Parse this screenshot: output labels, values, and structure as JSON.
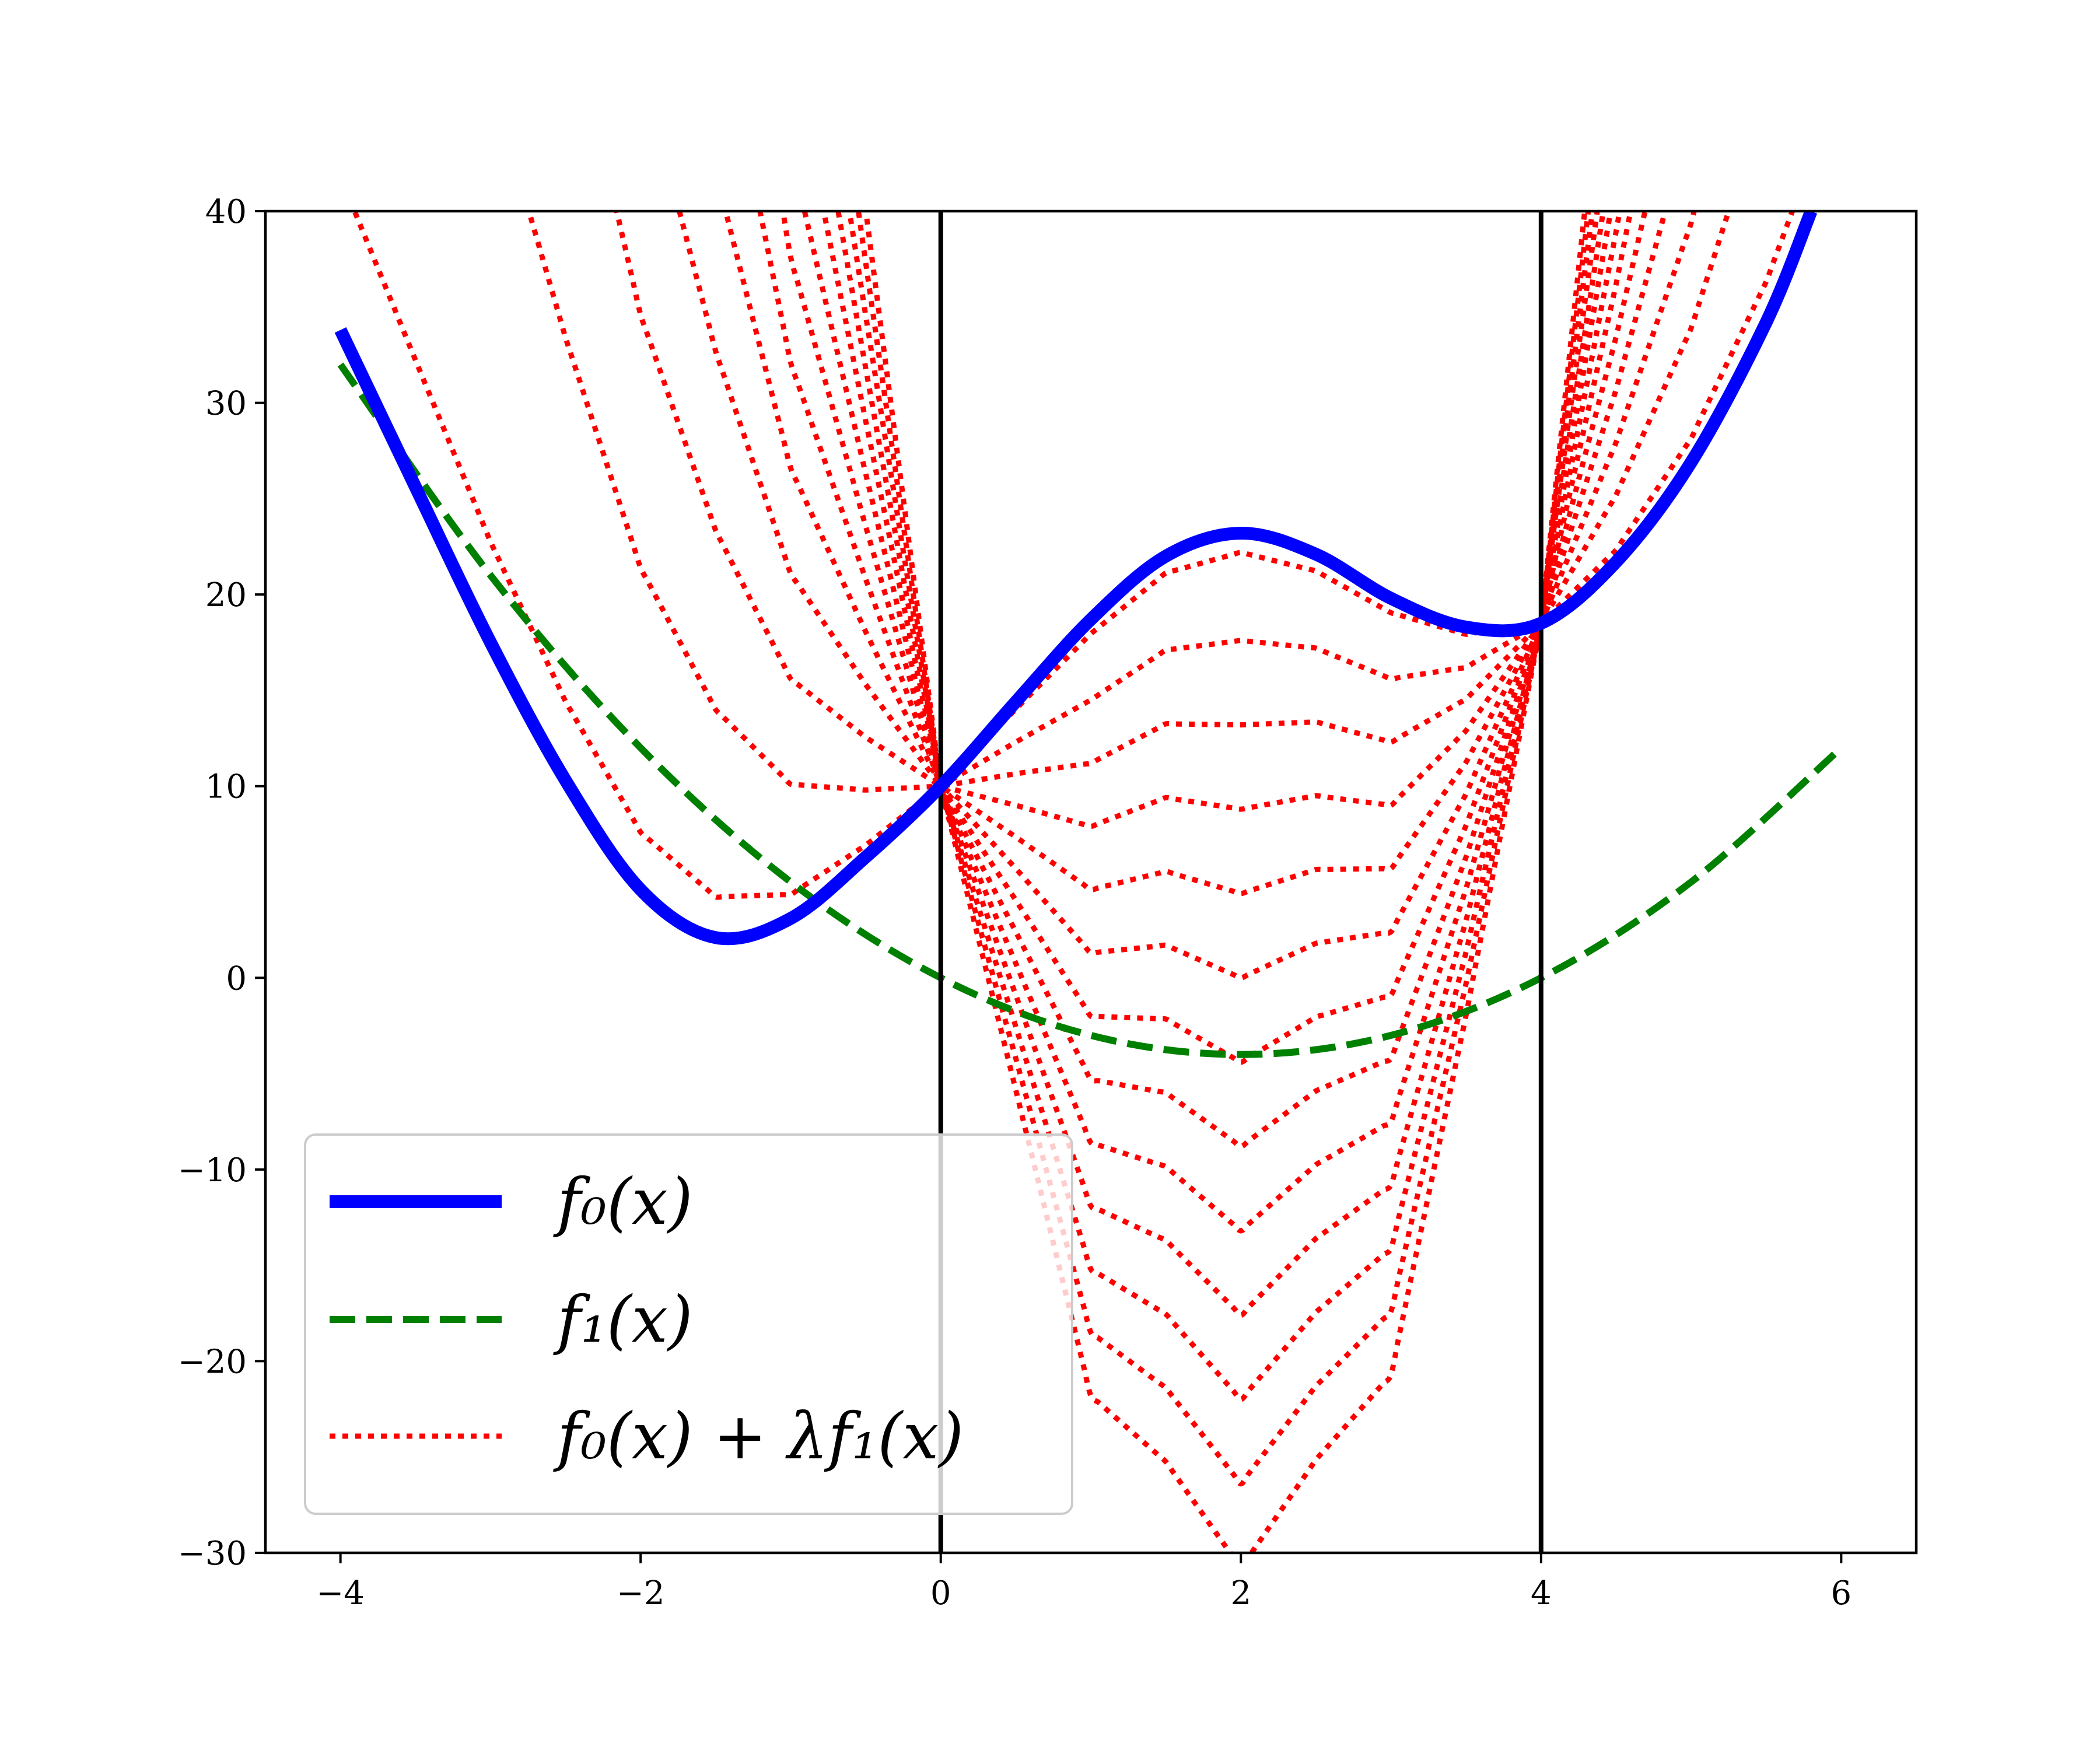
{
  "chart_data": {
    "type": "line",
    "title": "",
    "xlabel": "",
    "ylabel": "",
    "xlim": [
      -4.5,
      6.5
    ],
    "ylim": [
      -30,
      40
    ],
    "xticks": [
      -4,
      -2,
      0,
      2,
      4,
      6
    ],
    "yticks": [
      -30,
      -20,
      -10,
      0,
      10,
      20,
      30,
      40
    ],
    "x_tick_labels": [
      "−4",
      "−2",
      "0",
      "2",
      "4",
      "6"
    ],
    "y_tick_labels": [
      "−30",
      "−20",
      "−10",
      "0",
      "10",
      "20",
      "30",
      "40"
    ],
    "vertical_lines": [
      0,
      4
    ],
    "grid": false,
    "legend_position": "lower-left",
    "series": [
      {
        "name": "f0(x)",
        "legend_label": "f₀(x)",
        "style": "solid",
        "color": "#0000ff",
        "x": [
          -4.0,
          -3.5,
          -3.0,
          -2.5,
          -2.0,
          -1.5,
          -1.0,
          -0.5,
          0.0,
          0.5,
          1.0,
          1.5,
          2.0,
          2.5,
          3.0,
          3.5,
          4.0,
          4.5,
          5.0,
          5.5,
          5.8
        ],
        "y": [
          33.8,
          25.6,
          17.5,
          10.3,
          4.6,
          2.1,
          3.1,
          6.3,
          10.0,
          14.4,
          18.7,
          22.0,
          23.2,
          22.1,
          19.8,
          18.3,
          18.5,
          21.7,
          26.9,
          34.2,
          40.0
        ]
      },
      {
        "name": "f1(x)",
        "legend_label": "f₁(x)",
        "style": "dashed",
        "color": "#008000",
        "x": [
          -4.0,
          -3.0,
          -2.0,
          -1.0,
          0.0,
          1.0,
          2.0,
          3.0,
          4.0,
          5.0,
          6.0
        ],
        "y": [
          32,
          21,
          12,
          5,
          0,
          -3,
          -4,
          -3,
          0,
          5,
          12
        ]
      },
      {
        "name": "f0(x) + lambda f1(x)",
        "legend_label": "f₀(x) + λf₁(x)",
        "style": "dotted",
        "color": "#ff0000",
        "lambda_values": [
          0.25,
          1.4,
          2.5,
          3.6,
          4.7,
          5.8,
          6.9,
          8.0,
          9.1,
          10.2,
          11.3,
          12.4,
          13.5
        ],
        "minima_at_x2": [
          22.2,
          17.9,
          13.6,
          9.2,
          4.9,
          0.5,
          -3.8,
          -8.2,
          -12.6,
          -17.0
        ],
        "minima_left": [
          {
            "x": -1.3,
            "y": 3.4
          },
          {
            "x": -0.65,
            "y": 8.3
          }
        ]
      }
    ]
  }
}
